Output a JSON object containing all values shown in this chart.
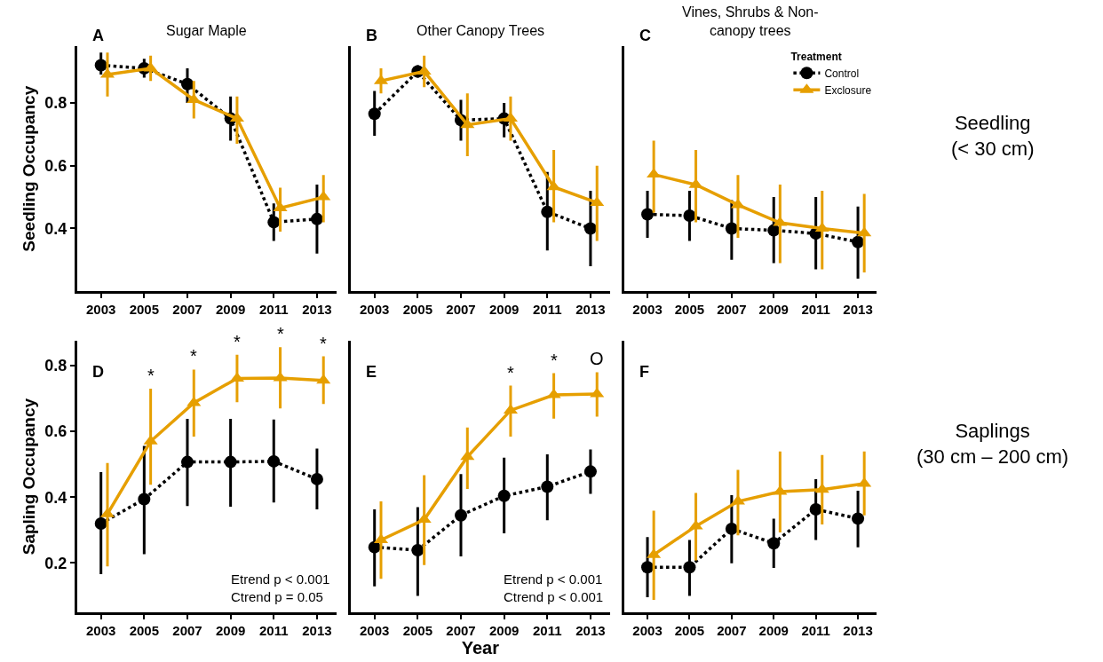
{
  "chart_data": [
    {
      "type": "line",
      "title": "Sugar Maple",
      "ylabel": "Seedling Occupancy",
      "annotations": [
        "A"
      ],
      "xlim": [
        2001.9,
        2013.9
      ],
      "xticks": [
        2003,
        2005,
        2007,
        2009,
        2011,
        2013
      ],
      "ylim": [
        0.2,
        0.98
      ],
      "yticks": [
        0.4,
        0.6,
        0.8
      ],
      "grid": false,
      "legend": false,
      "series": [
        {
          "color": "#000000",
          "line_style": "dotted",
          "marker": "circle",
          "x": [
            2003,
            2005,
            2007,
            2009,
            2011,
            2013
          ],
          "values": [
            0.92,
            0.91,
            0.86,
            0.75,
            0.42,
            0.43
          ],
          "errors": [
            [
              0.89,
              0.96
            ],
            [
              0.88,
              0.94
            ],
            [
              0.8,
              0.91
            ],
            [
              0.68,
              0.82
            ],
            [
              0.36,
              0.48
            ],
            [
              0.32,
              0.54
            ]
          ]
        },
        {
          "color": "#e69f00",
          "line_style": "solid",
          "marker": "triangle",
          "x": [
            2003.3,
            2005.3,
            2007.3,
            2009.3,
            2011.3,
            2013.3
          ],
          "values": [
            0.89,
            0.91,
            0.81,
            0.75,
            0.465,
            0.5
          ],
          "errors": [
            [
              0.82,
              0.96
            ],
            [
              0.87,
              0.95
            ],
            [
              0.75,
              0.87
            ],
            [
              0.67,
              0.82
            ],
            [
              0.39,
              0.53
            ],
            [
              0.42,
              0.57
            ]
          ]
        }
      ]
    },
    {
      "type": "line",
      "title": "Other Canopy Trees",
      "annotations": [
        "B"
      ],
      "xlim": [
        2001.9,
        2013.9
      ],
      "xticks": [
        2003,
        2005,
        2007,
        2009,
        2011,
        2013
      ],
      "ylim": [
        0.2,
        0.98
      ],
      "yticks": [
        0.4,
        0.6,
        0.8
      ],
      "tick_labels": "x",
      "grid": false,
      "legend": false,
      "series": [
        {
          "color": "#000000",
          "line_style": "dotted",
          "marker": "circle",
          "x": [
            2003,
            2005,
            2007,
            2009,
            2011,
            2013
          ],
          "values": [
            0.765,
            0.9,
            0.745,
            0.75,
            0.453,
            0.4
          ],
          "errors": [
            [
              0.695,
              0.838
            ],
            [
              0.88,
              0.92
            ],
            [
              0.68,
              0.81
            ],
            [
              0.69,
              0.8
            ],
            [
              0.33,
              0.58
            ],
            [
              0.28,
              0.52
            ]
          ]
        },
        {
          "color": "#e69f00",
          "line_style": "solid",
          "marker": "triangle",
          "x": [
            2003.3,
            2005.3,
            2007.3,
            2009.3,
            2011.3,
            2013.3
          ],
          "values": [
            0.87,
            0.9,
            0.73,
            0.75,
            0.532,
            0.482
          ],
          "errors": [
            [
              0.83,
              0.91
            ],
            [
              0.85,
              0.95
            ],
            [
              0.63,
              0.83
            ],
            [
              0.68,
              0.82
            ],
            [
              0.42,
              0.65
            ],
            [
              0.36,
              0.6
            ]
          ]
        }
      ]
    },
    {
      "type": "line",
      "title": "Vines, Shrubs & Non-\ncanopy trees",
      "y2label": "Seedling\n(< 30 cm)",
      "annotations": [
        "C"
      ],
      "legend_title": "Treatment",
      "xlim": [
        2001.9,
        2013.9
      ],
      "xticks": [
        2003,
        2005,
        2007,
        2009,
        2011,
        2013
      ],
      "ylim": [
        0.2,
        0.98
      ],
      "yticks": [
        0.4,
        0.6,
        0.8
      ],
      "tick_labels": "x",
      "grid": false,
      "legend": "top right",
      "series": [
        {
          "name": "Control",
          "color": "#000000",
          "line_style": "dotted",
          "marker": "circle",
          "x": [
            2003,
            2005,
            2007,
            2009,
            2011,
            2013
          ],
          "values": [
            0.445,
            0.441,
            0.4,
            0.394,
            0.384,
            0.357
          ],
          "errors": [
            [
              0.37,
              0.52
            ],
            [
              0.36,
              0.52
            ],
            [
              0.3,
              0.49
            ],
            [
              0.29,
              0.5
            ],
            [
              0.27,
              0.5
            ],
            [
              0.24,
              0.47
            ]
          ]
        },
        {
          "name": "Exclosure",
          "color": "#e69f00",
          "line_style": "solid",
          "marker": "triangle",
          "x": [
            2003.3,
            2005.3,
            2007.3,
            2009.3,
            2011.3,
            2013.3
          ],
          "values": [
            0.572,
            0.539,
            0.475,
            0.418,
            0.4,
            0.385
          ],
          "errors": [
            [
              0.45,
              0.68
            ],
            [
              0.42,
              0.65
            ],
            [
              0.37,
              0.57
            ],
            [
              0.29,
              0.54
            ],
            [
              0.27,
              0.52
            ],
            [
              0.26,
              0.51
            ]
          ]
        }
      ]
    },
    {
      "type": "line",
      "ylabel": "Sapling Occupancy",
      "annotations": [
        "D",
        "Etrend p < 0.001",
        "Ctrend p = 0.05"
      ],
      "xlim": [
        2001.9,
        2013.9
      ],
      "xticks": [
        2003,
        2005,
        2007,
        2009,
        2011,
        2013
      ],
      "ylim": [
        0.05,
        0.875
      ],
      "yticks": [
        0.2,
        0.4,
        0.6,
        0.8
      ],
      "grid": false,
      "legend": false,
      "series": [
        {
          "color": "#000000",
          "line_style": "dotted",
          "marker": "circle",
          "x": [
            2003,
            2005,
            2007,
            2009,
            2011,
            2013
          ],
          "values": [
            0.32,
            0.394,
            0.507,
            0.507,
            0.509,
            0.455
          ],
          "errors": [
            [
              0.166,
              0.476
            ],
            [
              0.227,
              0.556
            ],
            [
              0.373,
              0.638
            ],
            [
              0.371,
              0.638
            ],
            [
              0.384,
              0.636
            ],
            [
              0.363,
              0.548
            ]
          ]
        },
        {
          "color": "#e69f00",
          "line_style": "solid",
          "marker": "triangle",
          "x": [
            2003.3,
            2005.3,
            2007.3,
            2009.3,
            2011.3,
            2013.3
          ],
          "values": [
            0.349,
            0.57,
            0.687,
            0.761,
            0.762,
            0.755
          ],
          "value_labels": [
            null,
            "*",
            "*",
            "*",
            "*",
            "*"
          ],
          "errors": [
            [
              0.19,
              0.504
            ],
            [
              0.438,
              0.73
            ],
            [
              0.584,
              0.788
            ],
            [
              0.689,
              0.833
            ],
            [
              0.67,
              0.856
            ],
            [
              0.683,
              0.828
            ]
          ]
        }
      ]
    },
    {
      "type": "line",
      "xlabel": "Year",
      "annotations": [
        "E",
        "Etrend p < 0.001",
        "Ctrend p < 0.001"
      ],
      "xlim": [
        2001.9,
        2013.9
      ],
      "xticks": [
        2003,
        2005,
        2007,
        2009,
        2011,
        2013
      ],
      "ylim": [
        0.05,
        0.875
      ],
      "yticks": [
        0.2,
        0.4,
        0.6,
        0.8
      ],
      "tick_labels": "x",
      "grid": false,
      "legend": false,
      "series": [
        {
          "color": "#000000",
          "line_style": "dotted",
          "marker": "circle",
          "x": [
            2003,
            2005,
            2007,
            2009,
            2011,
            2013
          ],
          "values": [
            0.248,
            0.239,
            0.345,
            0.404,
            0.432,
            0.478
          ],
          "errors": [
            [
              0.129,
              0.363
            ],
            [
              0.1,
              0.37
            ],
            [
              0.22,
              0.47
            ],
            [
              0.29,
              0.52
            ],
            [
              0.33,
              0.53
            ],
            [
              0.41,
              0.545
            ]
          ]
        },
        {
          "color": "#e69f00",
          "line_style": "solid",
          "marker": "triangle",
          "x": [
            2003.3,
            2005.3,
            2007.3,
            2009.3,
            2011.3,
            2013.3
          ],
          "values": [
            0.27,
            0.332,
            0.523,
            0.664,
            0.711,
            0.714
          ],
          "value_labels": [
            null,
            null,
            null,
            "*",
            "*",
            "O"
          ],
          "errors": [
            [
              0.152,
              0.387
            ],
            [
              0.194,
              0.467
            ],
            [
              0.425,
              0.612
            ],
            [
              0.584,
              0.739
            ],
            [
              0.639,
              0.777
            ],
            [
              0.645,
              0.78
            ]
          ]
        }
      ]
    },
    {
      "type": "line",
      "y2label": "Saplings\n(30 cm – 200 cm)",
      "annotations": [
        "F"
      ],
      "xlim": [
        2001.9,
        2013.9
      ],
      "xticks": [
        2003,
        2005,
        2007,
        2009,
        2011,
        2013
      ],
      "ylim": [
        0.05,
        0.875
      ],
      "yticks": [
        0.2,
        0.4,
        0.6,
        0.8
      ],
      "tick_labels": "x",
      "grid": false,
      "legend": false,
      "series": [
        {
          "color": "#000000",
          "line_style": "dotted",
          "marker": "circle",
          "x": [
            2003,
            2005,
            2007,
            2009,
            2011,
            2013
          ],
          "values": [
            0.187,
            0.187,
            0.304,
            0.26,
            0.363,
            0.335
          ],
          "errors": [
            [
              0.096,
              0.279
            ],
            [
              0.1,
              0.27
            ],
            [
              0.199,
              0.406
            ],
            [
              0.185,
              0.335
            ],
            [
              0.27,
              0.455
            ],
            [
              0.248,
              0.42
            ]
          ]
        },
        {
          "color": "#e69f00",
          "line_style": "solid",
          "marker": "triangle",
          "x": [
            2003.3,
            2005.3,
            2007.3,
            2009.3,
            2011.3,
            2013.3
          ],
          "values": [
            0.225,
            0.312,
            0.387,
            0.417,
            0.423,
            0.441
          ],
          "errors": [
            [
              0.088,
              0.359
            ],
            [
              0.208,
              0.413
            ],
            [
              0.284,
              0.483
            ],
            [
              0.293,
              0.539
            ],
            [
              0.317,
              0.528
            ],
            [
              0.345,
              0.539
            ]
          ]
        }
      ]
    }
  ]
}
